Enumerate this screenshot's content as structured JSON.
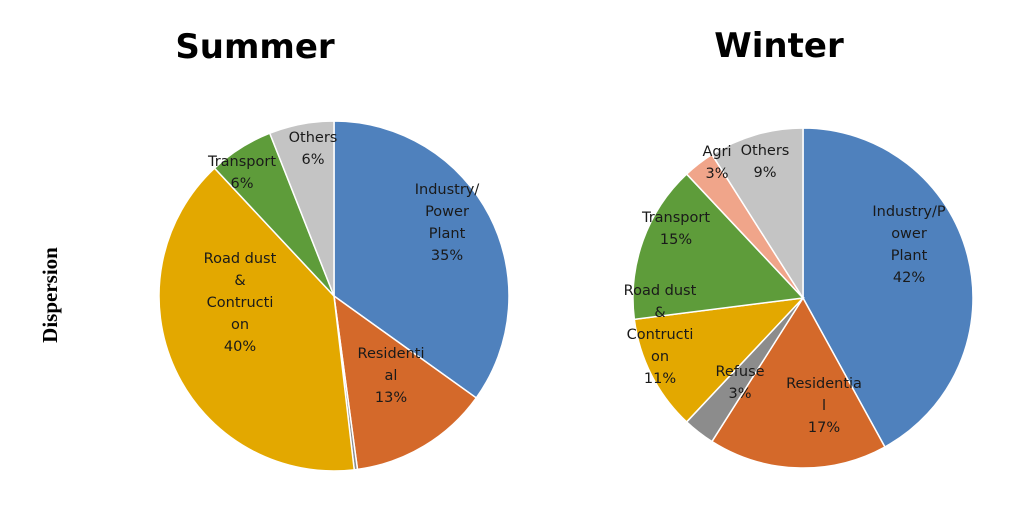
{
  "side_label": "Dispersion",
  "chart_data": [
    {
      "type": "pie",
      "title": "Summer",
      "slices": [
        {
          "label_lines": [
            "Industry/",
            "Power",
            "Plant",
            "35%"
          ],
          "value": 35,
          "color": "#4f81bd"
        },
        {
          "label_lines": [
            "Residenti",
            "al",
            "13%"
          ],
          "value": 13,
          "color": "#d4692a"
        },
        {
          "label_lines": [],
          "value": 0.3,
          "color": "#8c8c8c"
        },
        {
          "label_lines": [
            "Road dust",
            "&",
            "Contructi",
            "on",
            "40%"
          ],
          "value": 40,
          "color": "#e3a800"
        },
        {
          "label_lines": [
            "Transport",
            "6%"
          ],
          "value": 6,
          "color": "#5e9c3a"
        },
        {
          "label_lines": [
            "Others",
            "6%"
          ],
          "value": 6,
          "color": "#c4c4c4"
        }
      ]
    },
    {
      "type": "pie",
      "title": "Winter",
      "slices": [
        {
          "label_lines": [
            "Industry/P",
            "ower",
            "Plant",
            "42%"
          ],
          "value": 42,
          "color": "#4f81bd"
        },
        {
          "label_lines": [
            "Residentia",
            "l",
            "17%"
          ],
          "value": 17,
          "color": "#d4692a"
        },
        {
          "label_lines": [
            "Refuse",
            "3%"
          ],
          "value": 3,
          "color": "#8c8c8c"
        },
        {
          "label_lines": [
            "Road dust",
            "&",
            "Contructi",
            "on",
            "11%"
          ],
          "value": 11,
          "color": "#e3a800"
        },
        {
          "label_lines": [
            "Transport",
            "15%"
          ],
          "value": 15,
          "color": "#5e9c3a"
        },
        {
          "label_lines": [
            "Agri",
            "3%"
          ],
          "value": 3,
          "color": "#f0a58a"
        },
        {
          "label_lines": [
            "Others",
            "9%"
          ],
          "value": 9,
          "color": "#c4c4c4"
        }
      ]
    }
  ]
}
